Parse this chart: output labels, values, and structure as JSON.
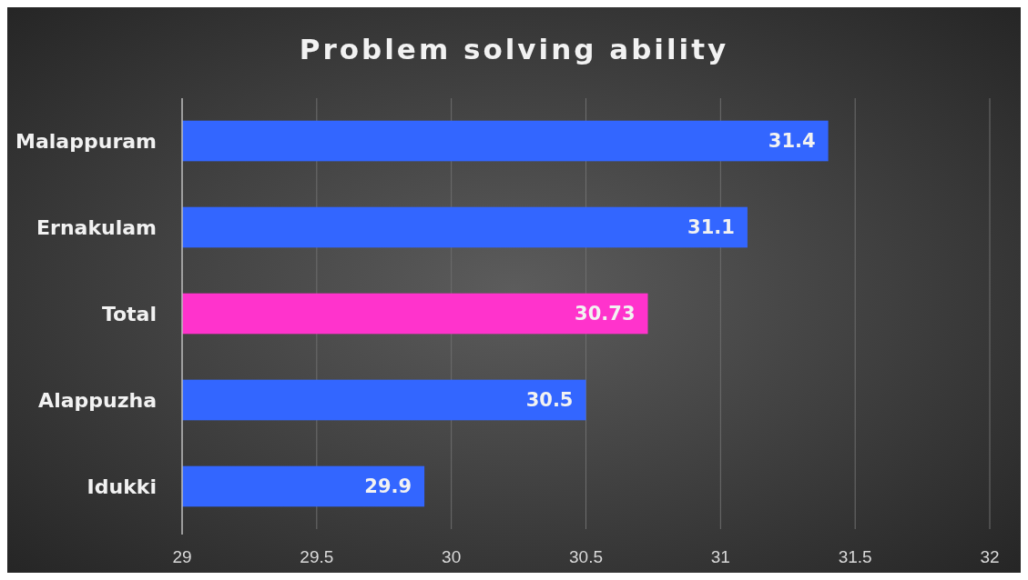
{
  "chart_data": {
    "type": "bar",
    "orientation": "horizontal",
    "title": "Problem solving ability",
    "categories": [
      "Malappuram",
      "Ernakulam",
      "Total",
      "Alappuzha",
      "Idukki"
    ],
    "values": [
      31.4,
      31.1,
      30.73,
      30.5,
      29.9
    ],
    "colors": [
      "#3366ff",
      "#3366ff",
      "#ff33cc",
      "#3366ff",
      "#3366ff"
    ],
    "xlim": [
      29,
      32
    ],
    "xticks": [
      29,
      29.5,
      30,
      30.5,
      31,
      31.5,
      32
    ],
    "grid": "x",
    "data_labels": true
  }
}
